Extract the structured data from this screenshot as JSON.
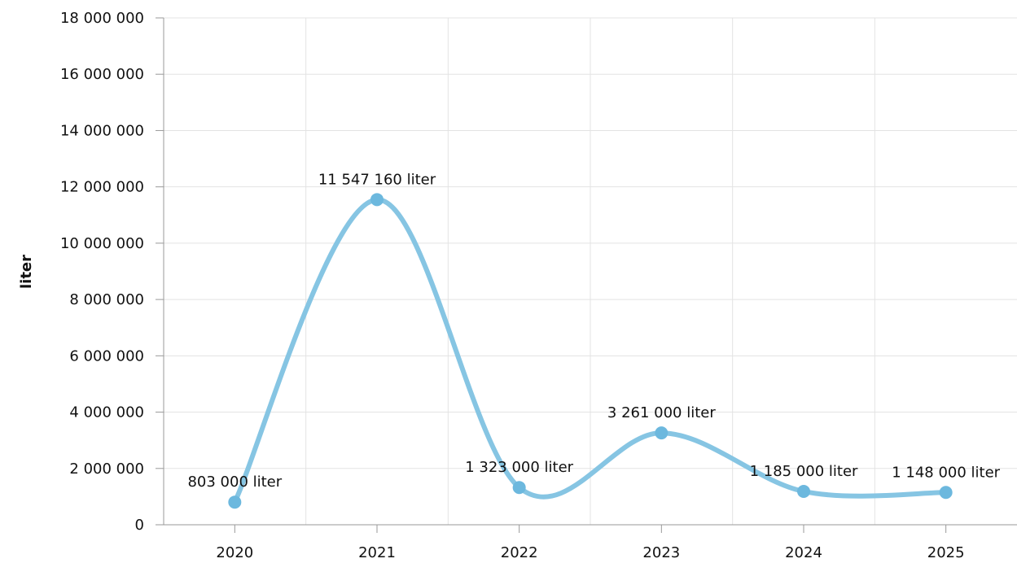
{
  "chart_data": {
    "type": "line",
    "title": "",
    "xlabel": "",
    "ylabel": "liter",
    "categories": [
      "2020",
      "2021",
      "2022",
      "2023",
      "2024",
      "2025"
    ],
    "series": [
      {
        "values": [
          803000,
          11547160,
          1323000,
          3261000,
          1185000,
          1148000
        ],
        "data_labels": [
          "803 000 liter",
          "11 547 160 liter",
          "1 323 000 liter",
          "3 261 000 liter",
          "1 185 000 liter",
          "1 148 000 liter"
        ],
        "color": "#86c5e3",
        "marker_color": "#6cb8de"
      }
    ],
    "ylim": [
      0,
      18000000
    ],
    "y_ticks": [
      0,
      2000000,
      4000000,
      6000000,
      8000000,
      10000000,
      12000000,
      14000000,
      16000000,
      18000000
    ],
    "y_tick_labels": [
      "0",
      "2 000 000",
      "4 000 000",
      "6 000 000",
      "8 000 000",
      "10 000 000",
      "12 000 000",
      "14 000 000",
      "16 000 000",
      "18 000 000"
    ],
    "grid": true,
    "smooth": true,
    "legend": "none",
    "colors": {
      "grid": "#e3e3e3",
      "axis": "#999999"
    }
  }
}
